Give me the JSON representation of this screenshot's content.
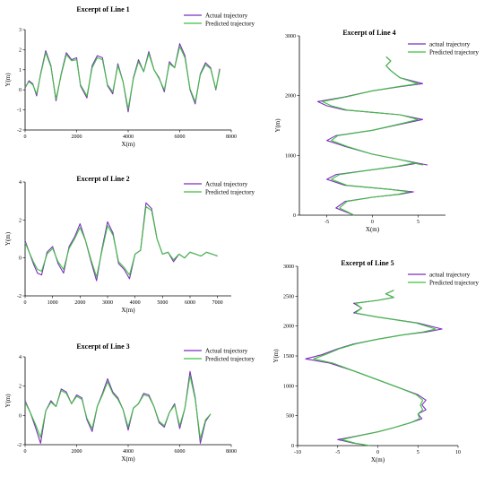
{
  "colors": {
    "actual": "#7b2fbe",
    "predicted": "#3fbf3f",
    "axis": "#000000"
  },
  "chart_data": [
    {
      "type": "line",
      "title": "Excerpt of Line 1",
      "xlabel": "X(m)",
      "ylabel": "Y(m)",
      "xlim": [
        0,
        8000
      ],
      "ylim": [
        -2,
        3
      ],
      "xticks": [
        0,
        2000,
        4000,
        6000,
        8000
      ],
      "yticks": [
        -2,
        -1,
        0,
        1,
        2,
        3
      ],
      "legend_position": "top-right",
      "series": [
        {
          "name": "Actual trajectory",
          "color": "#7b2fbe",
          "x": [
            0,
            150,
            300,
            450,
            600,
            800,
            1000,
            1200,
            1400,
            1600,
            1800,
            2000,
            2150,
            2400,
            2600,
            2800,
            3000,
            3200,
            3400,
            3600,
            3800,
            4000,
            4200,
            4400,
            4600,
            4800,
            5000,
            5200,
            5400,
            5600,
            5800,
            6000,
            6200,
            6400,
            6600,
            6800,
            7000,
            7200,
            7400,
            7550
          ],
          "y": [
            0.1,
            0.45,
            0.3,
            -0.3,
            0.8,
            1.95,
            1.2,
            -0.55,
            0.8,
            1.85,
            1.5,
            1.6,
            0.2,
            -0.4,
            1.2,
            1.7,
            1.6,
            0.2,
            -0.2,
            1.3,
            0.4,
            -1.1,
            0.6,
            1.5,
            0.9,
            1.9,
            1.0,
            0.6,
            -0.1,
            1.4,
            1.1,
            2.3,
            1.7,
            0.0,
            -0.7,
            0.8,
            1.35,
            1.1,
            0.0,
            1.05
          ]
        },
        {
          "name": "Predicted trajectory",
          "color": "#3fbf3f",
          "x": [
            0,
            150,
            300,
            450,
            600,
            800,
            1000,
            1200,
            1400,
            1600,
            1800,
            2000,
            2150,
            2400,
            2600,
            2800,
            3000,
            3200,
            3400,
            3600,
            3800,
            4000,
            4200,
            4400,
            4600,
            4800,
            5000,
            5200,
            5400,
            5600,
            5800,
            6000,
            6200,
            6400,
            6600,
            6800,
            7000,
            7200,
            7400,
            7550
          ],
          "y": [
            0.15,
            0.4,
            0.25,
            -0.2,
            0.75,
            1.85,
            1.15,
            -0.45,
            0.75,
            1.75,
            1.45,
            1.5,
            0.25,
            -0.3,
            1.1,
            1.6,
            1.5,
            0.25,
            -0.1,
            1.2,
            0.4,
            -0.95,
            0.55,
            1.4,
            0.9,
            1.8,
            1.0,
            0.55,
            0.0,
            1.3,
            1.1,
            2.15,
            1.6,
            0.05,
            -0.6,
            0.75,
            1.25,
            1.05,
            0.05,
            0.95
          ]
        }
      ]
    },
    {
      "type": "line",
      "title": "Excerpt of Line 2",
      "xlabel": "X(m)",
      "ylabel": "Y(m)",
      "xlim": [
        0,
        7500
      ],
      "ylim": [
        -2,
        4
      ],
      "xticks": [
        0,
        1000,
        2000,
        3000,
        4000,
        5000,
        6000,
        7000
      ],
      "yticks": [
        -2,
        0,
        2,
        4
      ],
      "legend_position": "top-right",
      "series": [
        {
          "name": "Actual trajectory",
          "color": "#7b2fbe",
          "x": [
            0,
            150,
            300,
            450,
            600,
            800,
            1000,
            1200,
            1400,
            1600,
            1800,
            2000,
            2200,
            2400,
            2600,
            2800,
            3000,
            3200,
            3400,
            3600,
            3800,
            4000,
            4200,
            4400,
            4600,
            4800,
            5000,
            5200,
            5400,
            5600,
            5800,
            6000,
            6200,
            6400,
            6600,
            6800,
            7000
          ],
          "y": [
            0.9,
            0.3,
            -0.3,
            -0.8,
            -0.9,
            0.3,
            0.6,
            -0.3,
            -0.8,
            0.6,
            1.1,
            1.8,
            0.9,
            -0.2,
            -1.2,
            0.5,
            1.9,
            1.3,
            -0.3,
            -0.6,
            -1.1,
            0.2,
            0.4,
            2.9,
            2.6,
            1.0,
            0.2,
            0.3,
            -0.2,
            0.2,
            0.0,
            0.3,
            0.2,
            0.1,
            0.3,
            0.2,
            0.1
          ]
        },
        {
          "name": "Predicted trajectory",
          "color": "#3fbf3f",
          "x": [
            0,
            150,
            300,
            450,
            600,
            800,
            1000,
            1200,
            1400,
            1600,
            1800,
            2000,
            2200,
            2400,
            2600,
            2800,
            3000,
            3200,
            3400,
            3600,
            3800,
            4000,
            4200,
            4400,
            4600,
            4800,
            5000,
            5200,
            5400,
            5600,
            5800,
            6000,
            6200,
            6400,
            6600,
            6800,
            7000
          ],
          "y": [
            0.8,
            0.3,
            -0.2,
            -0.6,
            -0.7,
            0.2,
            0.5,
            -0.2,
            -0.6,
            0.5,
            1.0,
            1.6,
            0.9,
            -0.1,
            -1.0,
            0.4,
            1.7,
            1.2,
            -0.2,
            -0.5,
            -0.9,
            0.2,
            0.4,
            2.7,
            2.5,
            1.0,
            0.2,
            0.3,
            -0.1,
            0.2,
            0.0,
            0.3,
            0.2,
            0.1,
            0.3,
            0.2,
            0.1
          ]
        }
      ]
    },
    {
      "type": "line",
      "title": "Excerpt of Line 3",
      "xlabel": "X(m)",
      "ylabel": "Y(m)",
      "xlim": [
        0,
        8000
      ],
      "ylim": [
        -2,
        4
      ],
      "xticks": [
        0,
        2000,
        4000,
        6000,
        8000
      ],
      "yticks": [
        -2,
        0,
        2,
        4
      ],
      "legend_position": "top-right",
      "series": [
        {
          "name": "Actual trajectory",
          "color": "#7b2fbe",
          "x": [
            0,
            200,
            400,
            600,
            800,
            1000,
            1200,
            1400,
            1600,
            1800,
            2000,
            2200,
            2400,
            2600,
            2800,
            3000,
            3200,
            3400,
            3600,
            3800,
            4000,
            4200,
            4400,
            4600,
            4800,
            5000,
            5200,
            5400,
            5600,
            5800,
            6000,
            6200,
            6400,
            6600,
            6800,
            7000,
            7200
          ],
          "y": [
            1.0,
            0.2,
            -0.8,
            -1.9,
            0.3,
            1.0,
            0.6,
            1.8,
            1.6,
            0.8,
            1.4,
            1.2,
            -0.3,
            -1.1,
            0.6,
            1.5,
            2.5,
            1.6,
            1.2,
            0.4,
            -1.0,
            0.5,
            0.8,
            1.5,
            1.4,
            0.6,
            -0.5,
            -0.8,
            0.2,
            0.8,
            -0.9,
            0.5,
            3.0,
            1.2,
            -1.9,
            -0.4,
            0.1
          ]
        },
        {
          "name": "Predicted trajectory",
          "color": "#3fbf3f",
          "x": [
            0,
            200,
            400,
            600,
            800,
            1000,
            1200,
            1400,
            1600,
            1800,
            2000,
            2200,
            2400,
            2600,
            2800,
            3000,
            3200,
            3400,
            3600,
            3800,
            4000,
            4200,
            4400,
            4600,
            4800,
            5000,
            5200,
            5400,
            5600,
            5800,
            6000,
            6200,
            6400,
            6600,
            6800,
            7000,
            7200
          ],
          "y": [
            0.9,
            0.2,
            -0.6,
            -1.5,
            0.3,
            0.9,
            0.6,
            1.7,
            1.5,
            0.8,
            1.3,
            1.1,
            -0.2,
            -0.9,
            0.6,
            1.4,
            2.3,
            1.5,
            1.1,
            0.4,
            -0.8,
            0.5,
            0.8,
            1.4,
            1.3,
            0.6,
            -0.4,
            -0.7,
            0.2,
            0.7,
            -0.7,
            0.5,
            2.7,
            1.1,
            -1.6,
            -0.3,
            0.1
          ]
        }
      ]
    },
    {
      "type": "line",
      "title": "Excerpt of Line 4",
      "xlabel": "X(m)",
      "ylabel": "Y(m)",
      "xlim": [
        -8,
        8
      ],
      "ylim": [
        0,
        3000
      ],
      "xticks": [
        -5,
        0,
        5
      ],
      "yticks": [
        0,
        1000,
        2000,
        3000
      ],
      "legend_position": "top-right",
      "series": [
        {
          "name": "actual trajectory",
          "color": "#7b2fbe",
          "x": [
            -2,
            -3,
            -4,
            -3,
            0,
            3,
            4.5,
            2,
            -3,
            -5,
            -4,
            0,
            3,
            5,
            6,
            3,
            0,
            -3,
            -5,
            -4,
            0,
            3,
            5.5,
            3,
            0,
            -3,
            -5,
            -6,
            -3,
            0,
            3,
            5.5,
            3,
            2,
            1.5,
            2,
            1.5
          ],
          "y": [
            0,
            60,
            120,
            230,
            300,
            350,
            390,
            430,
            500,
            600,
            680,
            760,
            820,
            870,
            840,
            930,
            1020,
            1150,
            1250,
            1330,
            1420,
            1520,
            1600,
            1680,
            1720,
            1760,
            1830,
            1900,
            1980,
            2080,
            2150,
            2200,
            2300,
            2420,
            2500,
            2580,
            2650
          ]
        },
        {
          "name": "Predicted trajectory",
          "color": "#3fbf3f",
          "x": [
            -2,
            -2.8,
            -3.6,
            -2.8,
            0,
            2.8,
            4,
            2,
            -2.8,
            -4.5,
            -3.6,
            0,
            2.8,
            4.5,
            5.5,
            3,
            0,
            -2.8,
            -4.5,
            -3.8,
            0,
            2.8,
            5,
            3,
            0,
            -2.8,
            -4.5,
            -5.5,
            -2.8,
            0,
            2.8,
            5,
            3,
            2,
            1.5,
            2,
            1.5
          ],
          "y": [
            0,
            60,
            120,
            230,
            300,
            350,
            390,
            430,
            500,
            600,
            680,
            760,
            820,
            870,
            840,
            930,
            1020,
            1150,
            1250,
            1330,
            1420,
            1520,
            1600,
            1680,
            1720,
            1760,
            1830,
            1900,
            1980,
            2080,
            2150,
            2200,
            2300,
            2420,
            2500,
            2580,
            2650
          ]
        }
      ]
    },
    {
      "type": "line",
      "title": "Excerpt of Line 5",
      "xlabel": "X(m)",
      "ylabel": "Y(m)",
      "xlim": [
        -10,
        10
      ],
      "ylim": [
        0,
        3000
      ],
      "xticks": [
        -10,
        -5,
        0,
        5,
        10
      ],
      "yticks": [
        0,
        500,
        1000,
        1500,
        2000,
        2500,
        3000
      ],
      "legend_position": "top-right",
      "series": [
        {
          "name": "actual trajectory",
          "color": "#7b2fbe",
          "x": [
            -1,
            -3,
            -5,
            -3,
            0,
            2,
            4,
            5.5,
            5,
            6,
            5.5,
            6,
            5,
            3,
            0,
            -3,
            -6,
            -9,
            -7,
            -5,
            -3,
            0,
            3,
            6,
            8,
            5,
            0,
            -3,
            -2,
            -3,
            0,
            2,
            1,
            2
          ],
          "y": [
            0,
            40,
            100,
            150,
            230,
            300,
            380,
            450,
            530,
            600,
            680,
            760,
            850,
            950,
            1100,
            1250,
            1380,
            1450,
            1520,
            1620,
            1700,
            1780,
            1850,
            1900,
            1950,
            2050,
            2150,
            2220,
            2300,
            2380,
            2430,
            2480,
            2540,
            2600
          ]
        },
        {
          "name": "Predicted trajectory",
          "color": "#3fbf3f",
          "x": [
            -1,
            -2.8,
            -4.5,
            -2.8,
            0,
            2,
            4,
            5.2,
            5,
            5.6,
            5.3,
            5.6,
            4.8,
            3,
            0,
            -3,
            -5.6,
            -8,
            -6.6,
            -4.8,
            -2.8,
            0,
            3,
            5.6,
            7.2,
            4.8,
            0,
            -2.8,
            -2,
            -2.8,
            0,
            2,
            1,
            2
          ],
          "y": [
            0,
            40,
            100,
            150,
            230,
            300,
            380,
            450,
            530,
            600,
            680,
            760,
            850,
            950,
            1100,
            1250,
            1380,
            1450,
            1520,
            1620,
            1700,
            1780,
            1850,
            1900,
            1950,
            2050,
            2150,
            2220,
            2300,
            2380,
            2430,
            2480,
            2540,
            2600
          ]
        }
      ]
    }
  ]
}
